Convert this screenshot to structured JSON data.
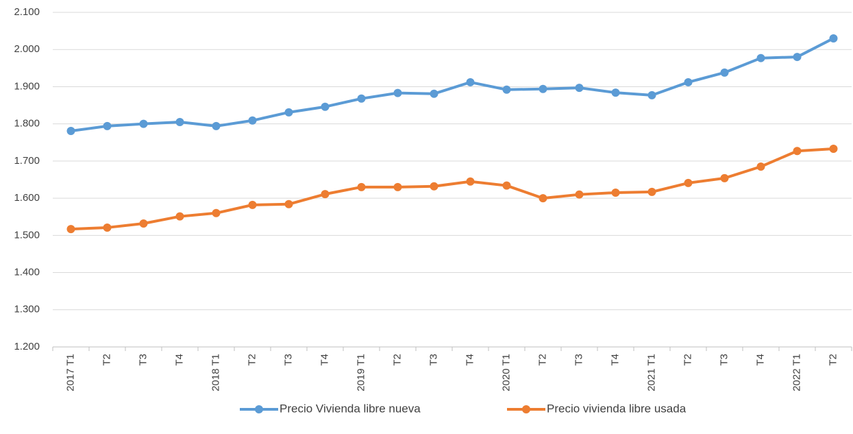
{
  "chart_data": {
    "type": "line",
    "categories": [
      "2017 T1",
      "T2",
      "T3",
      "T4",
      "2018 T1",
      "T2",
      "T3",
      "T4",
      "2019 T1",
      "T2",
      "T3",
      "T4",
      "2020 T1",
      "T2",
      "T3",
      "T4",
      "2021 T1",
      "T2",
      "T3",
      "T4",
      "2022 T1",
      "T2"
    ],
    "series": [
      {
        "name": "Precio Vivienda  libre nueva",
        "color": "#5b9bd5",
        "values": [
          1781,
          1794,
          1800,
          1805,
          1794,
          1809,
          1831,
          1846,
          1868,
          1883,
          1881,
          1912,
          1892,
          1894,
          1897,
          1884,
          1877,
          1912,
          1938,
          1977,
          1980,
          2030
        ]
      },
      {
        "name": "Precio vivienda libre usada",
        "color": "#ed7d31",
        "values": [
          1517,
          1521,
          1532,
          1551,
          1560,
          1582,
          1584,
          1611,
          1630,
          1630,
          1632,
          1645,
          1634,
          1600,
          1610,
          1615,
          1617,
          1641,
          1654,
          1685,
          1727,
          1733
        ]
      }
    ],
    "ylim": [
      1200,
      2100
    ],
    "yticks": [
      {
        "value": 1200,
        "label": "1.200"
      },
      {
        "value": 1300,
        "label": "1.300"
      },
      {
        "value": 1400,
        "label": "1.400"
      },
      {
        "value": 1500,
        "label": "1.500"
      },
      {
        "value": 1600,
        "label": "1.600"
      },
      {
        "value": 1700,
        "label": "1.700"
      },
      {
        "value": 1800,
        "label": "1.800"
      },
      {
        "value": 1900,
        "label": "1.900"
      },
      {
        "value": 2000,
        "label": "2.000"
      },
      {
        "value": 2100,
        "label": "2.100"
      }
    ],
    "grid": true,
    "legend": "bottom"
  }
}
